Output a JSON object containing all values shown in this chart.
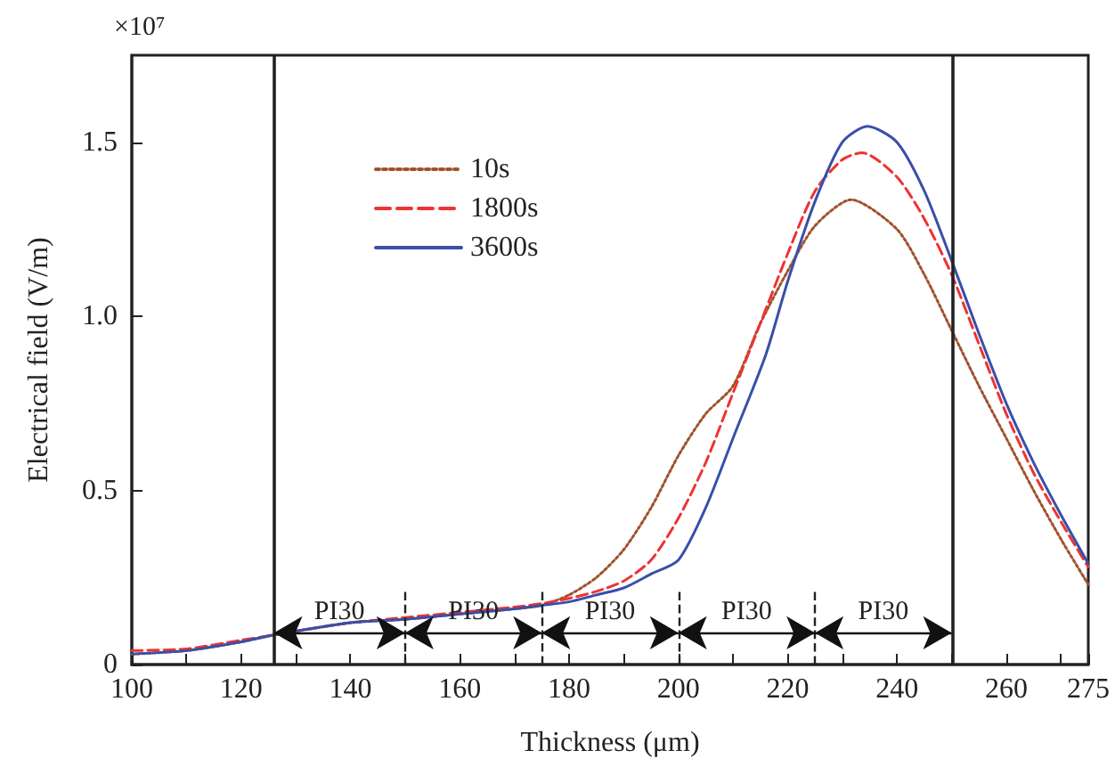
{
  "chart_data": {
    "type": "line",
    "xlabel": "Thickness (μm)",
    "ylabel": "Electrical field (V/m)",
    "xlim": [
      100,
      275
    ],
    "ylim": [
      0,
      1.75
    ],
    "xticks": [
      100,
      {
        "value": 110,
        "label": null
      },
      120,
      {
        "value": 130,
        "label": null
      },
      140,
      {
        "value": 150,
        "label": null
      },
      160,
      {
        "value": 170,
        "label": null
      },
      180,
      {
        "value": 190,
        "label": null
      },
      200,
      {
        "value": 210,
        "label": null
      },
      220,
      {
        "value": 230,
        "label": null
      },
      240,
      {
        "value": 250,
        "label": null
      },
      260,
      {
        "value": 270,
        "label": null
      },
      275
    ],
    "yticks": [
      0,
      0.5,
      {
        "value": 1.0,
        "label": "1.0"
      },
      1.5
    ],
    "grid": false,
    "legend": "top left",
    "marker": "none",
    "series": [
      {
        "name": "10s",
        "color": "#a0522d",
        "line_style": "dotted",
        "x": [
          100,
          110,
          120,
          126,
          140,
          150,
          160,
          170,
          175,
          180,
          185,
          190,
          195,
          200,
          205,
          210,
          215,
          220,
          225,
          231.6,
          240,
          245,
          250,
          255,
          260,
          265,
          270,
          275
        ],
        "values": [
          0.03,
          0.04,
          0.065,
          0.085,
          0.12,
          0.13,
          0.145,
          0.16,
          0.17,
          0.2,
          0.25,
          0.33,
          0.45,
          0.6,
          0.72,
          0.8,
          0.98,
          1.13,
          1.26,
          1.335,
          1.25,
          1.12,
          0.96,
          0.8,
          0.65,
          0.5,
          0.36,
          0.23
        ]
      },
      {
        "name": "1800s",
        "color": "#ee3333",
        "line_style": "dashed",
        "x": [
          100,
          110,
          120,
          126,
          140,
          150,
          160,
          170,
          175,
          180,
          185,
          190,
          195,
          200,
          205,
          210,
          215,
          220,
          225,
          230,
          233.6,
          240,
          245,
          250,
          255,
          260,
          265,
          270,
          275
        ],
        "values": [
          0.04,
          0.045,
          0.07,
          0.085,
          0.12,
          0.135,
          0.15,
          0.165,
          0.175,
          0.19,
          0.21,
          0.24,
          0.3,
          0.42,
          0.58,
          0.78,
          0.98,
          1.18,
          1.36,
          1.45,
          1.47,
          1.4,
          1.28,
          1.12,
          0.92,
          0.72,
          0.55,
          0.41,
          0.28
        ]
      },
      {
        "name": "3600s",
        "color": "#3a4fa8",
        "line_style": "solid",
        "x": [
          100,
          110,
          120,
          126,
          140,
          150,
          160,
          170,
          175,
          180,
          185,
          190,
          195,
          200,
          205,
          210,
          216,
          220,
          225,
          230,
          234.6,
          240,
          245,
          250,
          255,
          260,
          265,
          270,
          275
        ],
        "values": [
          0.03,
          0.04,
          0.065,
          0.085,
          0.12,
          0.13,
          0.145,
          0.16,
          0.17,
          0.18,
          0.2,
          0.22,
          0.26,
          0.3,
          0.45,
          0.65,
          0.89,
          1.1,
          1.33,
          1.5,
          1.546,
          1.5,
          1.36,
          1.16,
          0.95,
          0.75,
          0.58,
          0.43,
          0.29
        ]
      }
    ],
    "ref_lines": [
      {
        "axis": "x",
        "value": 126,
        "line_style": "solid",
        "color": "#222222"
      },
      {
        "axis": "x",
        "value": 150,
        "line_style": "dashed",
        "color": "#222222"
      },
      {
        "axis": "x",
        "value": 175,
        "line_style": "dashed",
        "color": "#222222"
      },
      {
        "axis": "x",
        "value": 200,
        "line_style": "dashed",
        "color": "#222222"
      },
      {
        "axis": "x",
        "value": 225,
        "line_style": "dashed",
        "color": "#222222"
      },
      {
        "axis": "x",
        "value": 250,
        "line_style": "solid",
        "color": "#222222"
      }
    ],
    "annotations": [
      "×10⁷",
      "PI30",
      "PI30",
      "PI30",
      "PI30",
      "PI30"
    ]
  }
}
